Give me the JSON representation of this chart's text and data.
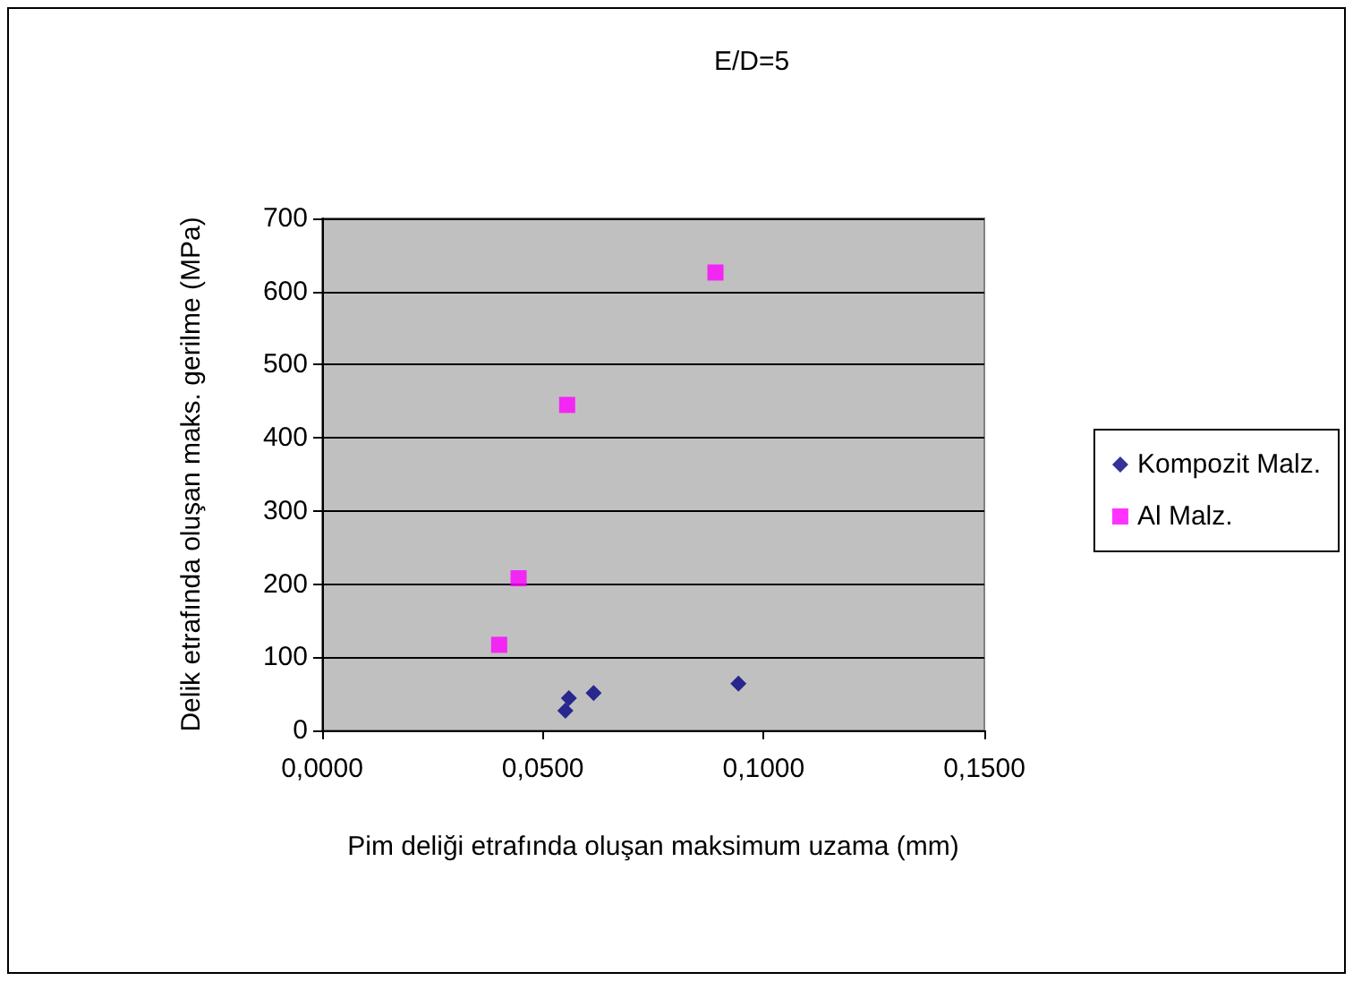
{
  "chart_data": {
    "type": "scatter",
    "title": "E/D=5",
    "xlabel": "Pim deliği etrafında oluşan maksimum uzama (mm)",
    "ylabel": "Delik etrafında oluşan maks. gerilme (MPa)",
    "xlim": [
      0,
      0.15
    ],
    "xticks": [
      {
        "value": 0,
        "label": "0,0000"
      },
      {
        "value": 0.05,
        "label": "0,0500"
      },
      {
        "value": 0.1,
        "label": "0,1000"
      },
      {
        "value": 0.15,
        "label": "0,1500"
      }
    ],
    "ylim": [
      0,
      700
    ],
    "yticks": [
      0,
      100,
      200,
      300,
      400,
      500,
      600,
      700
    ],
    "grid": "y",
    "legend": "right",
    "series": [
      {
        "name": "Kompozit Malz.",
        "color": "#000080",
        "marker": "diamond",
        "x": [
          0.0551,
          0.0559,
          0.0615,
          0.0943
        ],
        "values": [
          27,
          44,
          51,
          64
        ]
      },
      {
        "name": "Al Malz.",
        "color": "#ff00ff",
        "marker": "square",
        "x": [
          0.0401,
          0.0445,
          0.0555,
          0.0891
        ],
        "values": [
          117,
          208,
          445,
          626
        ]
      }
    ]
  }
}
